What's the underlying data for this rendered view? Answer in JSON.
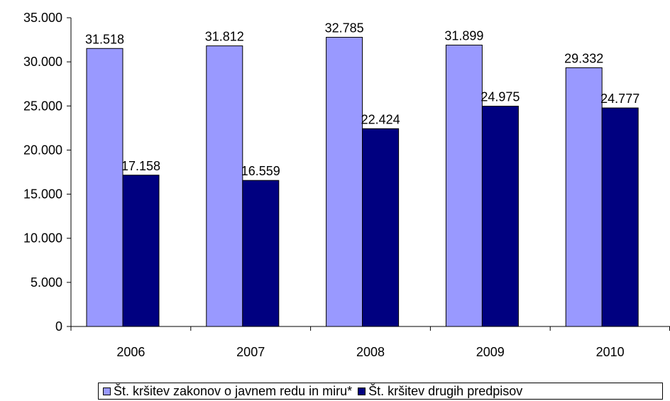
{
  "chart_data": {
    "type": "bar",
    "categories": [
      "2006",
      "2007",
      "2008",
      "2009",
      "2010"
    ],
    "series": [
      {
        "name": "Št. kršitev zakonov o javnem redu in miru*",
        "values": [
          31518,
          31812,
          32785,
          31899,
          29332
        ],
        "labels": [
          "31.518",
          "31.812",
          "32.785",
          "31.899",
          "29.332"
        ],
        "color": "#9999ff"
      },
      {
        "name": "Št. kršitev drugih predpisov",
        "values": [
          17158,
          16559,
          22424,
          24975,
          24777
        ],
        "labels": [
          "17.158",
          "16.559",
          "22.424",
          "24.975",
          "24.777"
        ],
        "color": "#000080"
      }
    ],
    "ylim": [
      0,
      35000
    ],
    "yticks": [
      0,
      5000,
      10000,
      15000,
      20000,
      25000,
      30000,
      35000
    ],
    "ytick_labels": [
      "0",
      "5.000",
      "10.000",
      "15.000",
      "20.000",
      "25.000",
      "30.000",
      "35.000"
    ],
    "grid": false,
    "legend_position": "bottom"
  }
}
